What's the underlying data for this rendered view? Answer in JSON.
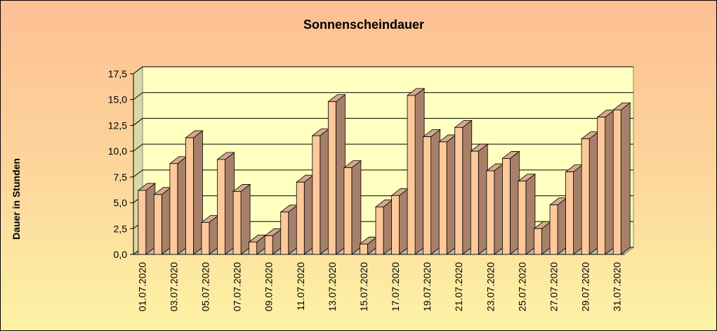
{
  "chart_data": {
    "type": "bar",
    "title": "Sonnenscheindauer",
    "ylabel": "Dauer in Stunden",
    "xlabel": "",
    "ylim": [
      0,
      17.5
    ],
    "yticks": [
      "0,0",
      "2,5",
      "5,0",
      "7,5",
      "10,0",
      "12,5",
      "15,0",
      "17,5"
    ],
    "ytick_values": [
      0,
      2.5,
      5,
      7.5,
      10,
      12.5,
      15,
      17.5
    ],
    "grid": true,
    "legend": "none",
    "categories": [
      "01.07.2020",
      "02.07.2020",
      "03.07.2020",
      "04.07.2020",
      "05.07.2020",
      "06.07.2020",
      "07.07.2020",
      "08.07.2020",
      "09.07.2020",
      "10.07.2020",
      "11.07.2020",
      "12.07.2020",
      "13.07.2020",
      "14.07.2020",
      "15.07.2020",
      "16.07.2020",
      "17.07.2020",
      "18.07.2020",
      "19.07.2020",
      "20.07.2020",
      "21.07.2020",
      "22.07.2020",
      "23.07.2020",
      "24.07.2020",
      "25.07.2020",
      "26.07.2020",
      "27.07.2020",
      "28.07.2020",
      "29.07.2020",
      "30.07.2020",
      "31.07.2020"
    ],
    "tick_labels": [
      "01.07.2020",
      "03.07.2020",
      "05.07.2020",
      "07.07.2020",
      "09.07.2020",
      "11.07.2020",
      "13.07.2020",
      "15.07.2020",
      "17.07.2020",
      "19.07.2020",
      "21.07.2020",
      "23.07.2020",
      "25.07.2020",
      "27.07.2020",
      "29.07.2020",
      "31.07.2020"
    ],
    "values": [
      6.2,
      5.8,
      8.8,
      11.3,
      3.1,
      9.2,
      6.1,
      1.2,
      1.8,
      4.1,
      7.0,
      11.5,
      14.8,
      8.4,
      1.0,
      4.6,
      5.7,
      15.4,
      11.4,
      10.9,
      12.3,
      10.0,
      8.1,
      9.3,
      7.1,
      2.5,
      4.8,
      8.0,
      11.2,
      13.3,
      14.0
    ],
    "colors": {
      "bar_front": "#fdc99a",
      "bar_side": "#a8806a",
      "bar_top": "#d5a98c",
      "plot_bg": "#ffffc0",
      "plot_wall": "#d9d9a8",
      "floor": "#bdbd9e",
      "grid": "#000000"
    }
  }
}
